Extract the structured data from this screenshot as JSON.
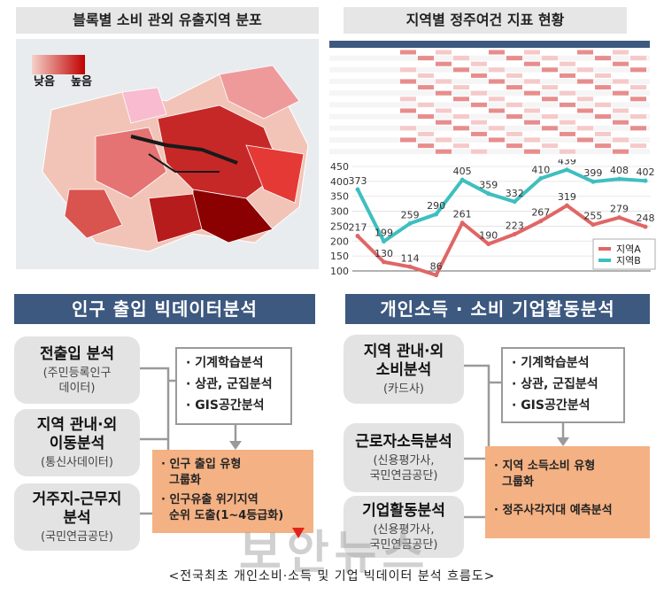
{
  "map_panel": {
    "title": "블록별 소비 관외 유출지역 분포",
    "legend_low": "낮음",
    "legend_high": "높음",
    "colors": {
      "low": "#f6d1c9",
      "high": "#c00000",
      "sea": "#d8dde0",
      "land": "#ededed"
    }
  },
  "table_panel": {
    "title": "지역별 정주여건 지표 현황"
  },
  "chart_data": {
    "type": "line",
    "x": [
      1,
      2,
      3,
      4,
      5,
      6,
      7,
      8,
      9,
      10,
      11,
      12
    ],
    "series": [
      {
        "name": "지역A",
        "color": "#e06666",
        "values": [
          217,
          130,
          114,
          86,
          261,
          190,
          223,
          267,
          319,
          255,
          279,
          248
        ]
      },
      {
        "name": "지역B",
        "color": "#3ebfbf",
        "values": [
          373,
          199,
          259,
          290,
          405,
          359,
          332,
          410,
          439,
          399,
          408,
          402
        ]
      }
    ],
    "ylim": [
      100,
      450
    ],
    "yticks": [
      100,
      150,
      200,
      250,
      300,
      350,
      400,
      450
    ],
    "title": "",
    "xlabel": "",
    "ylabel": "",
    "legend": "bottom-right"
  },
  "left_flow": {
    "banner": "인구 출입 빅데이터분석",
    "sources": [
      {
        "title": "전출입 분석",
        "sub": "(주민등록인구\n데이터)"
      },
      {
        "title": "지역 관내·외\n이동분석",
        "sub": "(통신사데이터)"
      },
      {
        "title": "거주지-근무지\n분석",
        "sub": "(국민연금공단)"
      }
    ],
    "methods": [
      "· 기계학습분석",
      "· 상관, 군집분석",
      "· GIS공간분석"
    ],
    "results": [
      "· 인구 출입 유형",
      "  그룹화",
      "· 인구유출 위기지역",
      "  순위 도출(1~4등급화)"
    ]
  },
  "right_flow": {
    "banner": "개인소득 · 소비 기업활동분석",
    "sources": [
      {
        "title": "지역 관내·외\n소비분석",
        "sub": "(카드사)"
      },
      {
        "title": "근로자소득분석",
        "sub": "(신용평가사,\n국민연금공단)"
      },
      {
        "title": "기업활동분석",
        "sub": "(신용평가사,\n국민연금공단)"
      }
    ],
    "methods": [
      "· 기계학습분석",
      "· 상관, 군집분석",
      "· GIS공간분석"
    ],
    "results": [
      "· 지역 소득소비 유형",
      "  그룹화",
      "· 정주사각지대 예측분석"
    ]
  },
  "caption": "<전국최초 개인소비·소득 및 기업 빅데이터 분석 흐름도>",
  "watermark": "보안뉴스"
}
